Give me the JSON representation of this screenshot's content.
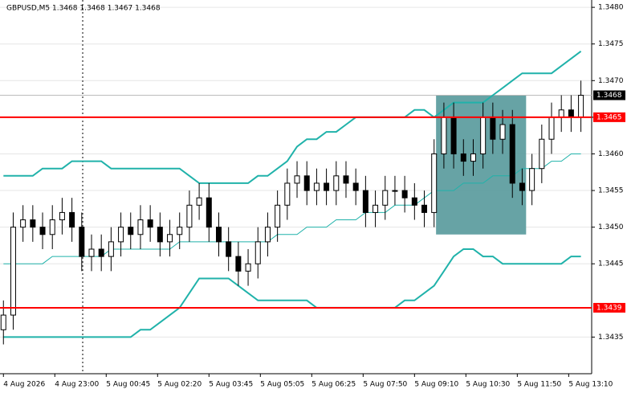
{
  "chart_data": {
    "type": "candlestick",
    "title": "GBPUSD,M5  1.3468 1.3468 1.3467 1.3468",
    "x": [
      0,
      20,
      40,
      60,
      80,
      100,
      120,
      140,
      160,
      180,
      200,
      220,
      240,
      260,
      280,
      300,
      320,
      340,
      360,
      380,
      400,
      420,
      440,
      460,
      480,
      500,
      520,
      540,
      560,
      580,
      600,
      620,
      640,
      660,
      680,
      700,
      720,
      740,
      760,
      780,
      800,
      820,
      840,
      860,
      880,
      900,
      920,
      940,
      960,
      980,
      1000,
      1020,
      1040,
      1060,
      1080,
      1100,
      1120,
      1140,
      1160,
      1180
    ],
    "open": [
      1.3436,
      1.3438,
      1.345,
      1.3451,
      1.345,
      1.3449,
      1.3451,
      1.3452,
      1.345,
      1.3446,
      1.3447,
      1.3446,
      1.3448,
      1.345,
      1.3449,
      1.3451,
      1.345,
      1.3448,
      1.3449,
      1.345,
      1.3453,
      1.3454,
      1.345,
      1.3448,
      1.3446,
      1.3444,
      1.3445,
      1.3448,
      1.345,
      1.3453,
      1.3456,
      1.3457,
      1.3455,
      1.3456,
      1.3455,
      1.3457,
      1.3456,
      1.3455,
      1.3452,
      1.3453,
      1.3455,
      1.3455,
      1.3454,
      1.3453,
      1.3452,
      1.346,
      1.3465,
      1.346,
      1.3459,
      1.346,
      1.3465,
      1.3462,
      1.3464,
      1.3456,
      1.3455,
      1.3458,
      1.3462,
      1.3465,
      1.3466,
      1.3465
    ],
    "high": [
      1.344,
      1.3452,
      1.3453,
      1.3453,
      1.3452,
      1.3453,
      1.3454,
      1.3454,
      1.3452,
      1.3449,
      1.3449,
      1.345,
      1.3452,
      1.3452,
      1.3453,
      1.3453,
      1.3452,
      1.3451,
      1.3452,
      1.3455,
      1.3456,
      1.3456,
      1.3452,
      1.345,
      1.3448,
      1.3447,
      1.345,
      1.3452,
      1.3455,
      1.3458,
      1.3459,
      1.3459,
      1.3458,
      1.3458,
      1.3459,
      1.3459,
      1.3458,
      1.3457,
      1.3455,
      1.3457,
      1.3457,
      1.3457,
      1.3456,
      1.3455,
      1.3462,
      1.3467,
      1.3467,
      1.3462,
      1.3462,
      1.3467,
      1.3467,
      1.3466,
      1.3466,
      1.3458,
      1.346,
      1.3464,
      1.3467,
      1.3468,
      1.3468,
      1.347
    ],
    "low": [
      1.3434,
      1.3436,
      1.3448,
      1.3448,
      1.3447,
      1.3447,
      1.3449,
      1.3448,
      1.3444,
      1.3444,
      1.3444,
      1.3444,
      1.3446,
      1.3447,
      1.3447,
      1.3448,
      1.3446,
      1.3446,
      1.3447,
      1.3448,
      1.3451,
      1.3448,
      1.3446,
      1.3444,
      1.3442,
      1.3442,
      1.3443,
      1.3446,
      1.3448,
      1.3451,
      1.3454,
      1.3453,
      1.3453,
      1.3453,
      1.3453,
      1.3454,
      1.3453,
      1.345,
      1.345,
      1.3451,
      1.3453,
      1.3452,
      1.3451,
      1.345,
      1.345,
      1.3458,
      1.3458,
      1.3457,
      1.3457,
      1.3458,
      1.346,
      1.346,
      1.3454,
      1.3453,
      1.3453,
      1.3456,
      1.346,
      1.3463,
      1.3463,
      1.3463
    ],
    "close": [
      1.3438,
      1.345,
      1.3451,
      1.345,
      1.3449,
      1.3451,
      1.3452,
      1.345,
      1.3446,
      1.3447,
      1.3446,
      1.3448,
      1.345,
      1.3449,
      1.3451,
      1.345,
      1.3448,
      1.3449,
      1.345,
      1.3453,
      1.3454,
      1.345,
      1.3448,
      1.3446,
      1.3444,
      1.3445,
      1.3448,
      1.345,
      1.3453,
      1.3456,
      1.3457,
      1.3455,
      1.3456,
      1.3455,
      1.3457,
      1.3456,
      1.3455,
      1.3452,
      1.3453,
      1.3455,
      1.3455,
      1.3454,
      1.3453,
      1.3452,
      1.346,
      1.3465,
      1.346,
      1.3459,
      1.346,
      1.3465,
      1.3462,
      1.3464,
      1.3456,
      1.3455,
      1.3458,
      1.3462,
      1.3465,
      1.3466,
      1.3465,
      1.3468
    ],
    "bands": [
      {
        "color": "#20b2aa",
        "values": [
          1.3457,
          1.3457,
          1.3457,
          1.3457,
          1.3458,
          1.3458,
          1.3458,
          1.3459,
          1.3459,
          1.3459,
          1.3459,
          1.3458,
          1.3458,
          1.3458,
          1.3458,
          1.3458,
          1.3458,
          1.3458,
          1.3458,
          1.3457,
          1.3456,
          1.3456,
          1.3456,
          1.3456,
          1.3456,
          1.3456,
          1.3457,
          1.3457,
          1.3458,
          1.3459,
          1.3461,
          1.3462,
          1.3462,
          1.3463,
          1.3463,
          1.3464,
          1.3465,
          1.3465,
          1.3465,
          1.3465,
          1.3465,
          1.3465,
          1.3466,
          1.3466,
          1.3465,
          1.3466,
          1.3467,
          1.3467,
          1.3467,
          1.3467,
          1.3468,
          1.3469,
          1.347,
          1.3471,
          1.3471,
          1.3471,
          1.3471,
          1.3472,
          1.3473,
          1.3474
        ]
      },
      {
        "color": "#20b2aa",
        "values": [
          1.3445,
          1.3445,
          1.3445,
          1.3445,
          1.3445,
          1.3446,
          1.3446,
          1.3446,
          1.3446,
          1.3446,
          1.3446,
          1.3447,
          1.3447,
          1.3447,
          1.3447,
          1.3447,
          1.3447,
          1.3447,
          1.3448,
          1.3448,
          1.3448,
          1.3448,
          1.3448,
          1.3448,
          1.3448,
          1.3448,
          1.3448,
          1.3448,
          1.3449,
          1.3449,
          1.3449,
          1.345,
          1.345,
          1.345,
          1.3451,
          1.3451,
          1.3451,
          1.3452,
          1.3452,
          1.3452,
          1.3453,
          1.3453,
          1.3453,
          1.3454,
          1.3455,
          1.3455,
          1.3455,
          1.3456,
          1.3456,
          1.3456,
          1.3457,
          1.3457,
          1.3457,
          1.3458,
          1.3458,
          1.3458,
          1.3459,
          1.3459,
          1.346,
          1.346
        ]
      },
      {
        "color": "#20b2aa",
        "values": [
          1.3435,
          1.3435,
          1.3435,
          1.3435,
          1.3435,
          1.3435,
          1.3435,
          1.3435,
          1.3435,
          1.3435,
          1.3435,
          1.3435,
          1.3435,
          1.3435,
          1.3436,
          1.3436,
          1.3437,
          1.3438,
          1.3439,
          1.3441,
          1.3443,
          1.3443,
          1.3443,
          1.3443,
          1.3442,
          1.3441,
          1.344,
          1.344,
          1.344,
          1.344,
          1.344,
          1.344,
          1.3439,
          1.3439,
          1.3439,
          1.3439,
          1.3439,
          1.3439,
          1.3439,
          1.3439,
          1.3439,
          1.344,
          1.344,
          1.3441,
          1.3442,
          1.3444,
          1.3446,
          1.3447,
          1.3447,
          1.3446,
          1.3446,
          1.3445,
          1.3445,
          1.3445,
          1.3445,
          1.3445,
          1.3445,
          1.3445,
          1.3446,
          1.3446
        ]
      }
    ],
    "xlim": [
      -7,
      1202
    ],
    "ylim": [
      1.343,
      1.3481
    ],
    "xticks": [
      {
        "value": 0,
        "label": "4 Aug 2026"
      },
      {
        "value": 105,
        "label": "4 Aug 23:00"
      },
      {
        "value": 210,
        "label": "5 Aug 00:45"
      },
      {
        "value": 315,
        "label": "5 Aug 02:20"
      },
      {
        "value": 420,
        "label": "5 Aug 03:45"
      },
      {
        "value": 525,
        "label": "5 Aug 05:05"
      },
      {
        "value": 630,
        "label": "5 Aug 06:25"
      },
      {
        "value": 735,
        "label": "5 Aug 07:50"
      },
      {
        "value": 840,
        "label": "5 Aug 09:10"
      },
      {
        "value": 945,
        "label": "5 Aug 10:30"
      },
      {
        "value": 1050,
        "label": "5 Aug 11:50"
      },
      {
        "value": 1155,
        "label": "5 Aug 13:10"
      }
    ],
    "yticks": [
      {
        "value": 1.348,
        "label": "1.3480"
      },
      {
        "value": 1.3475,
        "label": "1.3475"
      },
      {
        "value": 1.347,
        "label": "1.3470"
      },
      {
        "value": 1.3465,
        "label": "1.3465"
      },
      {
        "value": 1.346,
        "label": "1.3460"
      },
      {
        "value": 1.3455,
        "label": "1.3455"
      },
      {
        "value": 1.345,
        "label": "1.3450"
      },
      {
        "value": 1.3445,
        "label": "1.3445"
      },
      {
        "value": 1.3435,
        "label": "1.3435"
      }
    ],
    "grid": true,
    "levels": [
      {
        "value": 1.3465,
        "label": "1.3465",
        "color": "#ff0000"
      },
      {
        "value": 1.3439,
        "label": "1.3439",
        "color": "#ff0000"
      }
    ],
    "current_price": {
      "value": 1.3468,
      "label": "1.3468"
    },
    "zone": {
      "x": [
        884,
        1068
      ],
      "y": [
        1.3449,
        1.3468
      ],
      "color": "#5f9ea0"
    },
    "cursor_x": 162
  }
}
